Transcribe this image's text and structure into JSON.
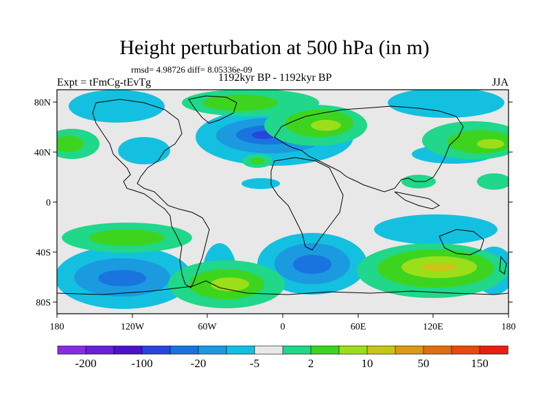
{
  "title": "Height perturbation at 500 hPa (in m)",
  "stats": "rmsd= 4.98726 diff= 8.05336e-09",
  "left_label": "Expt = tFmCg-tEvTg",
  "center_label": "1192kyr BP - 1192kyr BP",
  "right_label": "JJA",
  "lat_ticks": [
    "80N",
    "40N",
    "0",
    "40S",
    "80S"
  ],
  "lon_ticks": [
    "180",
    "120W",
    "60W",
    "0",
    "60E",
    "120E",
    "180"
  ],
  "colorbar": {
    "colors": [
      "#8a2be2",
      "#6a1fd8",
      "#4b12c9",
      "#2846df",
      "#1a74e0",
      "#1b9ae0",
      "#14c0e0",
      "#e8e8e8",
      "#20d78a",
      "#3dd41f",
      "#9cde1a",
      "#c8c516",
      "#d99a14",
      "#dd6e10",
      "#e64a10",
      "#e81f10"
    ],
    "labels": [
      "-200",
      "-100",
      "-20",
      "-5",
      "2",
      "10",
      "50",
      "150"
    ]
  },
  "chart_data": {
    "type": "heatmap",
    "title": "Height perturbation at 500 hPa (in m)",
    "projection": "cylindrical-equidistant",
    "lon_range": [
      -180,
      180
    ],
    "lat_range": [
      -90,
      90
    ],
    "levels": [
      -200,
      -150,
      -100,
      -50,
      -20,
      -10,
      -5,
      -2,
      2,
      5,
      10,
      20,
      50,
      100,
      150,
      200
    ],
    "features": [
      {
        "region": "North Atlantic / Western Europe",
        "lon": -20,
        "lat": 55,
        "sign": "negative",
        "peak": -20
      },
      {
        "region": "Eastern Europe / Western Russia",
        "lon": 40,
        "lat": 65,
        "sign": "positive",
        "peak": 10
      },
      {
        "region": "Arctic / Greenland",
        "lon": -30,
        "lat": 80,
        "sign": "positive",
        "peak": 10
      },
      {
        "region": "Northwest Pacific",
        "lon": 160,
        "lat": 45,
        "sign": "positive",
        "peak": 10
      },
      {
        "region": "Northeast Pacific",
        "lon": -165,
        "lat": 45,
        "sign": "positive",
        "peak": 10
      },
      {
        "region": "South Pacific",
        "lon": -120,
        "lat": -65,
        "sign": "negative",
        "peak": -20
      },
      {
        "region": "South Atlantic / Antarctic Peninsula",
        "lon": -30,
        "lat": -65,
        "sign": "positive",
        "peak": 10
      },
      {
        "region": "Southern Indian Ocean",
        "lon": 20,
        "lat": -55,
        "sign": "negative",
        "peak": -20
      },
      {
        "region": "South Indian / Australia",
        "lon": 120,
        "lat": -50,
        "sign": "positive",
        "peak": 10
      },
      {
        "region": "Southeast Pacific",
        "lon": -150,
        "lat": -25,
        "sign": "positive",
        "peak": 5
      }
    ]
  }
}
